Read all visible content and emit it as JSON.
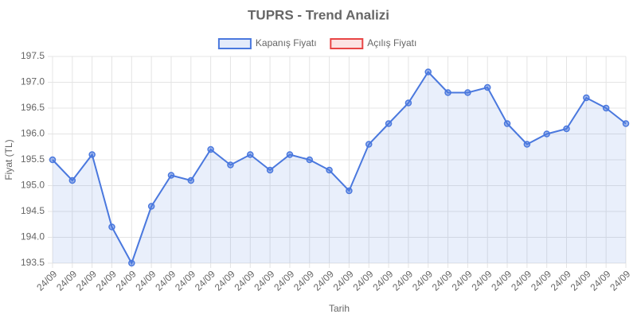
{
  "chart_data": {
    "type": "line",
    "title": "TUPRS - Trend Analizi",
    "xlabel": "Tarih",
    "ylabel": "Fiyat (TL)",
    "categories": [
      "24/09",
      "24/09",
      "24/09",
      "24/09",
      "24/09",
      "24/09",
      "24/09",
      "24/09",
      "24/09",
      "24/09",
      "24/09",
      "24/09",
      "24/09",
      "24/09",
      "24/09",
      "24/09",
      "24/09",
      "24/09",
      "24/09",
      "24/09",
      "24/09",
      "24/09",
      "24/09",
      "24/09",
      "24/09",
      "24/09",
      "24/09",
      "24/09",
      "24/09",
      "24/09"
    ],
    "series": [
      {
        "name": "Kapanış Fiyatı",
        "color": "#4a78de",
        "fill": true,
        "values": [
          195.5,
          195.1,
          195.6,
          194.2,
          193.5,
          194.6,
          195.2,
          195.1,
          195.7,
          195.4,
          195.6,
          195.3,
          195.6,
          195.5,
          195.3,
          194.9,
          195.8,
          196.2,
          196.6,
          197.2,
          196.8,
          196.8,
          196.9,
          196.2,
          195.8,
          196.0,
          196.1,
          196.7,
          196.5,
          196.2
        ]
      },
      {
        "name": "Açılış Fiyatı",
        "color": "#e84545",
        "fill": false,
        "values": [
          null,
          null,
          null,
          null,
          null,
          null,
          null,
          null,
          null,
          null,
          null,
          null,
          null,
          null,
          null,
          null,
          null,
          null,
          null,
          null,
          null,
          null,
          null,
          null,
          null,
          null,
          null,
          null,
          null,
          null
        ]
      }
    ],
    "ylim": [
      193.5,
      197.5
    ],
    "yticks": [
      193.5,
      {
        "value": 194,
        "label": "194.0"
      },
      194.5,
      {
        "value": 195,
        "label": "195.0"
      },
      195.5,
      {
        "value": 196,
        "label": "196.0"
      },
      196.5,
      {
        "value": 197,
        "label": "197.0"
      },
      197.5
    ],
    "grid": true,
    "legend": "top"
  }
}
